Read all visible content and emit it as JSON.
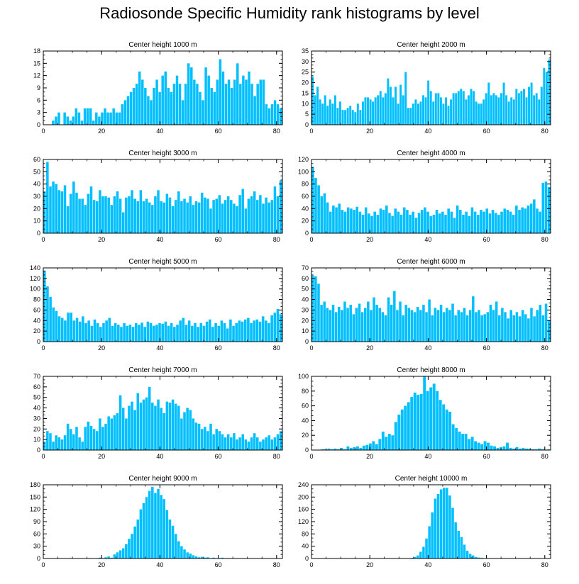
{
  "figure": {
    "title": "Radiosonde Specific Humidity rank histograms by level",
    "bar_color": "#00BFFF"
  },
  "chart_data": [
    {
      "type": "bar",
      "title": "Center height 1000 m",
      "xlim": [
        0,
        82
      ],
      "ylim": [
        0,
        18
      ],
      "xticks": [
        0,
        20,
        40,
        60,
        80
      ],
      "yticks": [
        0,
        3,
        6,
        9,
        12,
        15,
        18
      ],
      "values": [
        0,
        0,
        0,
        1,
        2,
        3,
        0,
        3,
        2,
        1,
        2,
        4,
        3,
        1,
        4,
        4,
        4,
        1,
        3,
        2,
        3,
        4,
        3,
        3,
        4,
        3,
        3,
        5,
        6,
        7,
        8,
        9,
        10,
        13,
        11,
        9,
        7,
        6,
        9,
        11,
        8,
        12,
        13,
        9,
        8,
        10,
        12,
        10,
        6,
        10,
        15,
        14,
        11,
        10,
        8,
        6,
        14,
        12,
        9,
        8,
        11,
        16,
        13,
        10,
        11,
        9,
        11,
        15,
        10,
        12,
        11,
        13,
        10,
        7,
        10,
        11,
        11,
        5,
        4,
        5,
        6,
        5,
        4
      ]
    },
    {
      "type": "bar",
      "title": "Center height 2000 m",
      "xlim": [
        0,
        82
      ],
      "ylim": [
        0,
        35
      ],
      "xticks": [
        0,
        20,
        40,
        60,
        80
      ],
      "yticks": [
        0,
        5,
        10,
        15,
        20,
        25,
        30,
        35
      ],
      "values": [
        23,
        14,
        18,
        12,
        10,
        14,
        9,
        12,
        10,
        14,
        8,
        11,
        7,
        7,
        8,
        9,
        7,
        6,
        10,
        7,
        11,
        13,
        13,
        12,
        11,
        13,
        14,
        16,
        13,
        15,
        22,
        18,
        13,
        18,
        10,
        19,
        14,
        25,
        8,
        8,
        10,
        12,
        10,
        11,
        14,
        13,
        21,
        16,
        11,
        15,
        15,
        13,
        10,
        13,
        9,
        12,
        15,
        15,
        16,
        17,
        16,
        12,
        14,
        17,
        16,
        11,
        10,
        10,
        12,
        15,
        20,
        14,
        15,
        14,
        13,
        15,
        20,
        14,
        11,
        13,
        12,
        17,
        15,
        16,
        17,
        13,
        18,
        20,
        14,
        15,
        12,
        18,
        27,
        25,
        31
      ]
    },
    {
      "type": "bar",
      "title": "Center height 3000 m",
      "xlim": [
        0,
        82
      ],
      "ylim": [
        0,
        60
      ],
      "xticks": [
        0,
        20,
        40,
        60,
        80
      ],
      "yticks": [
        0,
        10,
        20,
        30,
        40,
        50,
        60
      ],
      "values": [
        34,
        58,
        38,
        42,
        40,
        35,
        34,
        39,
        22,
        32,
        42,
        33,
        28,
        28,
        23,
        32,
        38,
        27,
        26,
        35,
        30,
        30,
        29,
        23,
        30,
        34,
        28,
        17,
        29,
        30,
        35,
        28,
        26,
        35,
        26,
        28,
        25,
        23,
        30,
        35,
        26,
        25,
        32,
        29,
        22,
        27,
        34,
        26,
        28,
        25,
        30,
        23,
        26,
        25,
        33,
        29,
        28,
        20,
        27,
        28,
        31,
        24,
        27,
        30,
        27,
        24,
        22,
        31,
        36,
        20,
        28,
        30,
        34,
        27,
        31,
        24,
        29,
        25,
        27,
        38,
        30,
        43
      ]
    },
    {
      "type": "bar",
      "title": "Center height 4000 m",
      "xlim": [
        0,
        82
      ],
      "ylim": [
        0,
        120
      ],
      "xticks": [
        0,
        20,
        40,
        60,
        80
      ],
      "yticks": [
        0,
        20,
        40,
        60,
        80,
        100,
        120
      ],
      "values": [
        108,
        90,
        78,
        60,
        65,
        50,
        35,
        45,
        42,
        48,
        38,
        35,
        42,
        40,
        38,
        43,
        35,
        30,
        42,
        32,
        28,
        35,
        30,
        40,
        38,
        45,
        33,
        28,
        40,
        35,
        30,
        42,
        38,
        30,
        35,
        25,
        33,
        38,
        42,
        35,
        28,
        30,
        38,
        32,
        35,
        30,
        40,
        35,
        25,
        45,
        38,
        30,
        35,
        28,
        42,
        35,
        30,
        38,
        35,
        40,
        32,
        38,
        33,
        30,
        35,
        40,
        38,
        35,
        30,
        45,
        38,
        42,
        40,
        45,
        48,
        55,
        40,
        35,
        82,
        84,
        75
      ]
    },
    {
      "type": "bar",
      "title": "Center height 5000 m",
      "xlim": [
        0,
        82
      ],
      "ylim": [
        0,
        140
      ],
      "xticks": [
        0,
        20,
        40,
        60,
        80
      ],
      "yticks": [
        0,
        20,
        40,
        60,
        80,
        100,
        120,
        140
      ],
      "values": [
        135,
        105,
        85,
        65,
        58,
        48,
        45,
        40,
        55,
        55,
        40,
        45,
        38,
        48,
        35,
        40,
        30,
        42,
        35,
        28,
        35,
        40,
        45,
        30,
        35,
        32,
        28,
        35,
        30,
        32,
        28,
        35,
        32,
        36,
        28,
        38,
        35,
        30,
        32,
        35,
        34,
        38,
        30,
        35,
        28,
        32,
        40,
        45,
        32,
        40,
        30,
        35,
        28,
        35,
        30,
        38,
        42,
        28,
        35,
        30,
        40,
        35,
        25,
        42,
        30,
        35,
        40,
        38,
        42,
        45,
        35,
        40,
        42,
        38,
        48,
        40,
        35,
        50,
        55,
        62,
        52
      ]
    },
    {
      "type": "bar",
      "title": "Center height 6000 m",
      "xlim": [
        0,
        82
      ],
      "ylim": [
        0,
        70
      ],
      "xticks": [
        0,
        20,
        40,
        60,
        80
      ],
      "yticks": [
        0,
        10,
        20,
        30,
        40,
        50,
        60,
        70
      ],
      "values": [
        63,
        62,
        55,
        35,
        38,
        32,
        30,
        35,
        28,
        33,
        30,
        38,
        32,
        35,
        26,
        32,
        36,
        28,
        32,
        38,
        30,
        42,
        35,
        32,
        28,
        25,
        42,
        35,
        48,
        30,
        38,
        25,
        35,
        32,
        30,
        28,
        33,
        30,
        35,
        28,
        40,
        25,
        32,
        30,
        35,
        28,
        32,
        30,
        36,
        25,
        30,
        28,
        32,
        25,
        30,
        43,
        28,
        30,
        25,
        26,
        28,
        35,
        30,
        38,
        25,
        32,
        28,
        22,
        30,
        25,
        28,
        24,
        30,
        26,
        22,
        32,
        24,
        30,
        35,
        25,
        36,
        20
      ]
    },
    {
      "type": "bar",
      "title": "Center height 7000 m",
      "xlim": [
        0,
        82
      ],
      "ylim": [
        0,
        70
      ],
      "xticks": [
        0,
        20,
        40,
        60,
        80
      ],
      "yticks": [
        0,
        10,
        20,
        30,
        40,
        50,
        60,
        70
      ],
      "values": [
        8,
        18,
        16,
        8,
        14,
        12,
        10,
        14,
        25,
        20,
        15,
        22,
        12,
        8,
        22,
        27,
        23,
        20,
        18,
        30,
        22,
        25,
        32,
        30,
        33,
        35,
        52,
        40,
        30,
        42,
        46,
        38,
        54,
        45,
        48,
        50,
        60,
        45,
        42,
        48,
        40,
        35,
        46,
        45,
        48,
        44,
        42,
        30,
        36,
        40,
        38,
        30,
        26,
        25,
        20,
        22,
        18,
        25,
        15,
        20,
        18,
        15,
        12,
        15,
        12,
        16,
        10,
        12,
        15,
        10,
        8,
        12,
        16,
        12,
        8,
        10,
        12,
        14,
        10,
        12,
        15,
        18
      ]
    },
    {
      "type": "bar",
      "title": "Center height 8000 m",
      "xlim": [
        0,
        82
      ],
      "ylim": [
        0,
        100
      ],
      "xticks": [
        0,
        20,
        40,
        60,
        80
      ],
      "yticks": [
        0,
        20,
        40,
        60,
        80,
        100
      ],
      "values": [
        0,
        0,
        0,
        1,
        1,
        2,
        1,
        2,
        1,
        3,
        1,
        5,
        3,
        4,
        5,
        3,
        6,
        7,
        9,
        12,
        8,
        15,
        25,
        18,
        22,
        20,
        38,
        48,
        55,
        60,
        65,
        72,
        78,
        75,
        76,
        100,
        80,
        85,
        90,
        80,
        68,
        62,
        55,
        52,
        35,
        30,
        25,
        22,
        22,
        15,
        18,
        12,
        10,
        8,
        12,
        10,
        6,
        5,
        3,
        4,
        5,
        10,
        3,
        2,
        4,
        2,
        3,
        2,
        2,
        1,
        1,
        2,
        1,
        0,
        1
      ]
    },
    {
      "type": "bar",
      "title": "Center height 9000 m",
      "xlim": [
        0,
        82
      ],
      "ylim": [
        0,
        180
      ],
      "xticks": [
        0,
        20,
        40,
        60,
        80
      ],
      "yticks": [
        0,
        30,
        60,
        90,
        120,
        150,
        180
      ],
      "values": [
        0,
        0,
        0,
        0,
        0,
        0,
        0,
        0,
        0,
        0,
        0,
        0,
        0,
        0,
        0,
        0,
        0,
        0,
        1,
        2,
        1,
        3,
        5,
        2,
        10,
        15,
        20,
        25,
        35,
        48,
        60,
        78,
        95,
        120,
        135,
        150,
        165,
        175,
        160,
        170,
        155,
        145,
        118,
        95,
        80,
        60,
        42,
        30,
        22,
        15,
        12,
        8,
        5,
        3,
        4,
        2,
        3,
        1,
        2,
        1,
        1,
        2,
        0,
        1,
        0,
        0,
        0,
        0,
        0,
        0,
        0,
        0,
        0,
        0,
        0,
        0,
        0,
        0,
        0,
        0,
        0,
        0
      ]
    },
    {
      "type": "bar",
      "title": "Center height 10000 m",
      "xlim": [
        0,
        82
      ],
      "ylim": [
        0,
        240
      ],
      "xticks": [
        0,
        20,
        40,
        60,
        80
      ],
      "yticks": [
        0,
        40,
        80,
        120,
        160,
        200,
        240
      ],
      "values": [
        0,
        0,
        0,
        0,
        0,
        0,
        0,
        0,
        0,
        0,
        0,
        0,
        0,
        0,
        0,
        0,
        0,
        0,
        0,
        0,
        0,
        0,
        0,
        0,
        0,
        0,
        0,
        0,
        0,
        0,
        0,
        0,
        0,
        0,
        2,
        5,
        10,
        22,
        38,
        65,
        105,
        150,
        195,
        210,
        225,
        230,
        230,
        205,
        165,
        118,
        90,
        70,
        45,
        25,
        15,
        10,
        5,
        3,
        2,
        1,
        1,
        0,
        0,
        0,
        0,
        0,
        0,
        0,
        0,
        0,
        0,
        0,
        0,
        0,
        0,
        0,
        0,
        0,
        0,
        0,
        0,
        0
      ]
    }
  ]
}
